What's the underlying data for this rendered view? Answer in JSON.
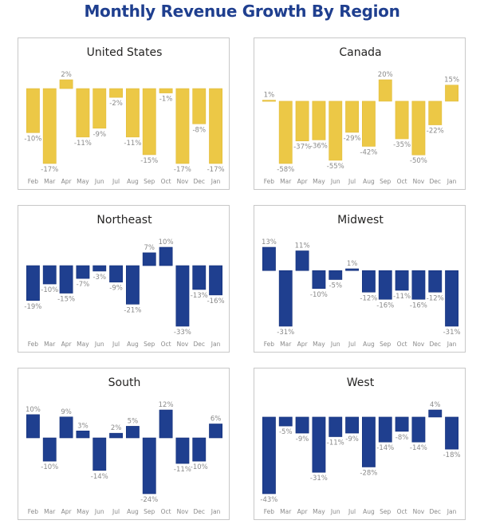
{
  "title": "Monthly Revenue Growth By Region",
  "colors": {
    "title": "#1f3f8f",
    "country_bar": "#ecc846",
    "region_bar": "#1f3f8f",
    "label": "#8a8a8a"
  },
  "chart_data": [
    {
      "type": "bar",
      "title": "United States",
      "categories": [
        "Feb",
        "Mar",
        "Apr",
        "May",
        "Jun",
        "Jul",
        "Aug",
        "Sep",
        "Oct",
        "Nov",
        "Dec",
        "Jan"
      ],
      "values": [
        -10,
        -17,
        2,
        -11,
        -9,
        -2,
        -11,
        -15,
        -1,
        -17,
        -8,
        -17
      ],
      "labels": [
        "-10%",
        "-17%",
        "2%",
        "-11%",
        "-9%",
        "-2%",
        "-11%",
        "-15%",
        "-1%",
        "-17%",
        "-8%",
        "-17%"
      ],
      "color": "#ecc846",
      "ylim": [
        -17,
        2
      ],
      "xlabel": "",
      "ylabel": "",
      "grid": false
    },
    {
      "type": "bar",
      "title": "Canada",
      "categories": [
        "Feb",
        "Mar",
        "Apr",
        "May",
        "Jun",
        "Jul",
        "Aug",
        "Sep",
        "Oct",
        "Nov",
        "Dec",
        "Jan"
      ],
      "values": [
        1,
        -58,
        -37,
        -36,
        -55,
        -29,
        -42,
        20,
        -35,
        -50,
        -22,
        15
      ],
      "labels": [
        "1%",
        "-58%",
        "-37%",
        "-36%",
        "-55%",
        "-29%",
        "-42%",
        "20%",
        "-35%",
        "-50%",
        "-22%",
        "15%"
      ],
      "color": "#ecc846",
      "ylim": [
        -58,
        20
      ],
      "xlabel": "",
      "ylabel": "",
      "grid": false
    },
    {
      "type": "bar",
      "title": "Northeast",
      "categories": [
        "Feb",
        "Mar",
        "Apr",
        "May",
        "Jun",
        "Jul",
        "Aug",
        "Sep",
        "Oct",
        "Nov",
        "Dec",
        "Jan"
      ],
      "values": [
        -19,
        -10,
        -15,
        -7,
        -3,
        -9,
        -21,
        7,
        10,
        -33,
        -13,
        -16
      ],
      "labels": [
        "-19%",
        "-10%",
        "-15%",
        "-7%",
        "-3%",
        "-9%",
        "-21%",
        "7%",
        "10%",
        "-33%",
        "-13%",
        "-16%"
      ],
      "color": "#1f3f8f",
      "ylim": [
        -33,
        10
      ],
      "xlabel": "",
      "ylabel": "",
      "grid": false
    },
    {
      "type": "bar",
      "title": "Midwest",
      "categories": [
        "Feb",
        "Mar",
        "Apr",
        "May",
        "Jun",
        "Jul",
        "Aug",
        "Sep",
        "Oct",
        "Nov",
        "Dec",
        "Jan"
      ],
      "values": [
        13,
        -31,
        11,
        -10,
        -5,
        1,
        -12,
        -16,
        -11,
        -16,
        -12,
        -31
      ],
      "labels": [
        "13%",
        "-31%",
        "11%",
        "-10%",
        "-5%",
        "1%",
        "-12%",
        "-16%",
        "-11%",
        "-16%",
        "-12%",
        "-31%"
      ],
      "color": "#1f3f8f",
      "ylim": [
        -31,
        13
      ],
      "xlabel": "",
      "ylabel": "",
      "grid": false
    },
    {
      "type": "bar",
      "title": "South",
      "categories": [
        "Feb",
        "Mar",
        "Apr",
        "May",
        "Jun",
        "Jul",
        "Aug",
        "Sep",
        "Oct",
        "Nov",
        "Dec",
        "Jan"
      ],
      "values": [
        10,
        -10,
        9,
        3,
        -14,
        2,
        5,
        -24,
        12,
        -11,
        -10,
        6
      ],
      "labels": [
        "10%",
        "-10%",
        "9%",
        "3%",
        "-14%",
        "2%",
        "5%",
        "-24%",
        "12%",
        "-11%",
        "-10%",
        "6%"
      ],
      "color": "#1f3f8f",
      "ylim": [
        -24,
        12
      ],
      "xlabel": "",
      "ylabel": "",
      "grid": false
    },
    {
      "type": "bar",
      "title": "West",
      "categories": [
        "Feb",
        "Mar",
        "Apr",
        "May",
        "Jun",
        "Jul",
        "Aug",
        "Sep",
        "Oct",
        "Nov",
        "Dec",
        "Jan"
      ],
      "values": [
        -43,
        -5,
        -9,
        -31,
        -11,
        -9,
        -28,
        -14,
        -8,
        -14,
        4,
        -18
      ],
      "labels": [
        "-43%",
        "-5%",
        "-9%",
        "-31%",
        "-11%",
        "-9%",
        "-28%",
        "-14%",
        "-8%",
        "-14%",
        "4%",
        "-18%"
      ],
      "color": "#1f3f8f",
      "ylim": [
        -43,
        4
      ],
      "xlabel": "",
      "ylabel": "",
      "grid": false
    }
  ]
}
